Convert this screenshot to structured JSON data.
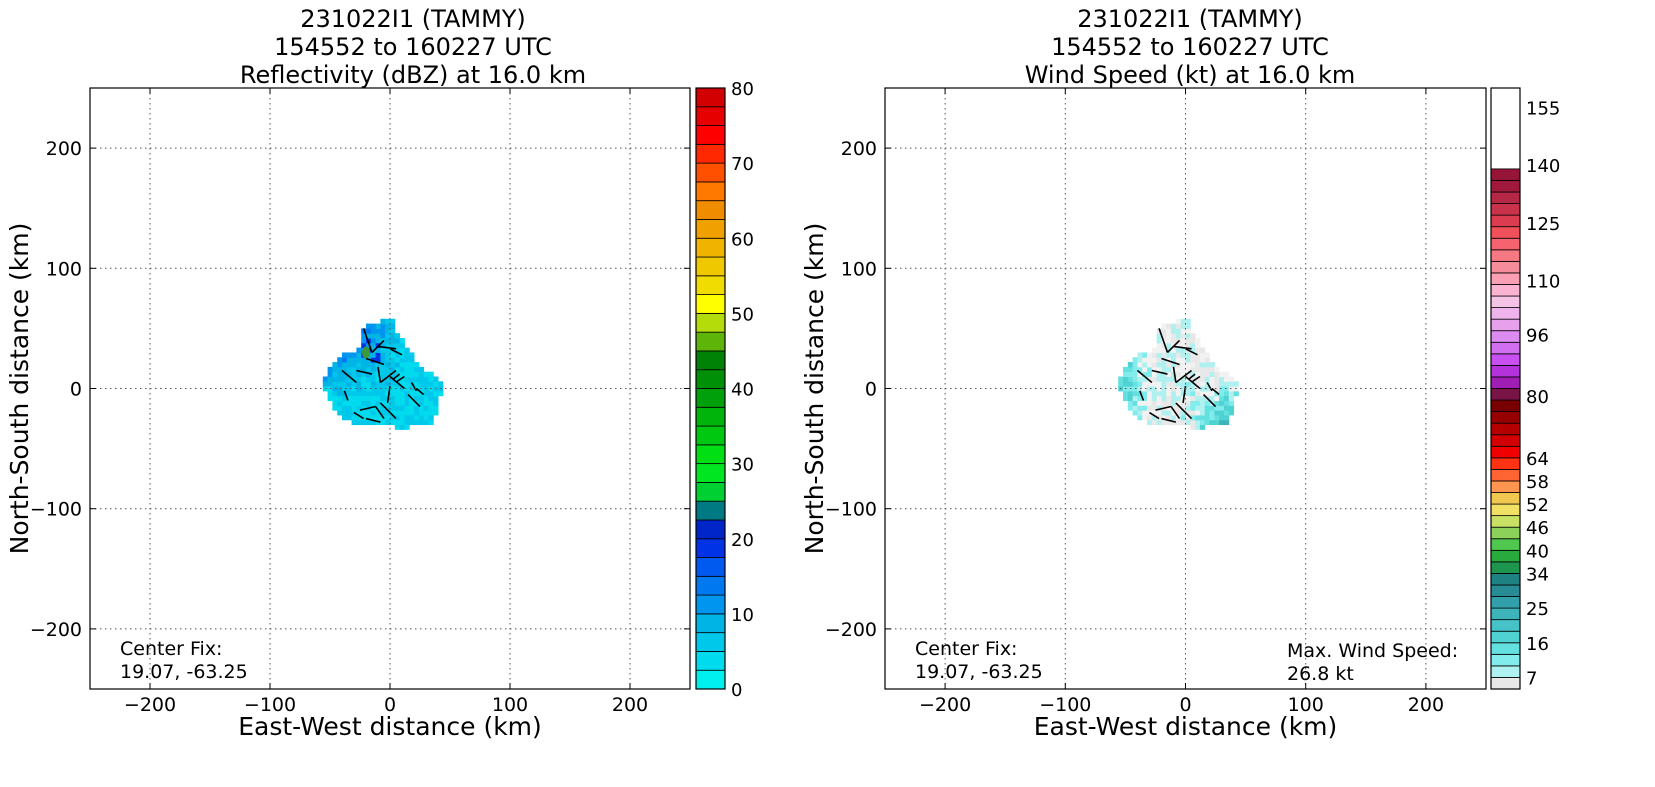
{
  "chart_data": [
    {
      "type": "heatmap",
      "title_lines": [
        "231022I1 (TAMMY)",
        "154552 to 160227 UTC",
        "Reflectivity (dBZ) at 16.0 km"
      ],
      "xlabel": "East-West distance (km)",
      "ylabel": "North-South distance (km)",
      "xlim": [
        -250,
        250
      ],
      "ylim": [
        -250,
        250
      ],
      "xticks": [
        -200,
        -100,
        0,
        100,
        200
      ],
      "yticks": [
        -200,
        -100,
        0,
        100,
        200
      ],
      "grid": true,
      "annotation_left": [
        "Center Fix:",
        "19.07, -63.25"
      ],
      "colorbar": {
        "min": 0,
        "max": 80,
        "step": 2.5,
        "tick_values": [
          0,
          10,
          20,
          30,
          40,
          50,
          60,
          70,
          80
        ],
        "tick_labels": [
          "0",
          "10",
          "20",
          "30",
          "40",
          "50",
          "60",
          "70",
          "80"
        ],
        "colors": [
          "#00f0f0",
          "#00dced",
          "#00c8ea",
          "#00b4e6",
          "#0096ef",
          "#0078f0",
          "#005af0",
          "#0032e6",
          "#0025c8",
          "#007a82",
          "#00d032",
          "#00e620",
          "#00de14",
          "#00c810",
          "#00b40c",
          "#00a00a",
          "#009008",
          "#008206",
          "#5fb40a",
          "#b4dc0a",
          "#ffff00",
          "#f0dc00",
          "#f0c800",
          "#f0b400",
          "#f0a000",
          "#f08c00",
          "#ff7800",
          "#ff5000",
          "#ff2800",
          "#ff0000",
          "#e60000",
          "#d20000",
          "#c00010",
          "#c80028",
          "#e00078",
          "#f000c8",
          "#e632e6",
          "#c850dc",
          "#8c3ca0",
          "#4b2864",
          "#000000"
        ]
      },
      "echo_region": {
        "center_km": [
          -5,
          10
        ],
        "palette": [
          "#00dced",
          "#00c8ea",
          "#00b4e6",
          "#0096ef",
          "#0078f0",
          "#005af0",
          "#0032e6"
        ],
        "embedded_cell_color": "#3a9a3a"
      }
    },
    {
      "type": "heatmap",
      "title_lines": [
        "231022I1 (TAMMY)",
        "154552 to 160227 UTC",
        "Wind Speed (kt) at 16.0 km"
      ],
      "xlabel": "East-West distance (km)",
      "ylabel": "North-South distance (km)",
      "xlim": [
        -250,
        250
      ],
      "ylim": [
        -250,
        250
      ],
      "xticks": [
        -200,
        -100,
        0,
        100,
        200
      ],
      "yticks": [
        -200,
        -100,
        0,
        100,
        200
      ],
      "grid": true,
      "annotation_left": [
        "Center Fix:",
        "19.07, -63.25"
      ],
      "annotation_right": [
        "Max. Wind Speed:",
        "26.8 kt"
      ],
      "colorbar": {
        "min": 4,
        "max": 160,
        "step": 3,
        "tick_values": [
          7,
          16,
          25,
          34,
          40,
          46,
          52,
          58,
          64,
          80,
          96,
          110,
          125,
          140,
          155
        ],
        "tick_labels": [
          "7",
          "16",
          "25",
          "34",
          "40",
          "46",
          "52",
          "58",
          "64",
          "80",
          "96",
          "110",
          "125",
          "140",
          "155"
        ],
        "colors": [
          "#e8e8e8",
          "#aff0f0",
          "#82ecec",
          "#64e0e0",
          "#50d2d2",
          "#46c3c8",
          "#3cb4b9",
          "#32a0aa",
          "#288c96",
          "#1e8282",
          "#1e9650",
          "#28aa3c",
          "#50c850",
          "#8cd25a",
          "#c8e164",
          "#f0e164",
          "#f0c850",
          "#ff9650",
          "#ff6432",
          "#ff3214",
          "#f00000",
          "#d20000",
          "#b40000",
          "#960000",
          "#780000",
          "#781446",
          "#a01eb4",
          "#b432dc",
          "#c850f0",
          "#d26ef0",
          "#dc8cf0",
          "#e6a0ec",
          "#f0b4ec",
          "#f5c3e6",
          "#fab4d2",
          "#fa9fb4",
          "#f58c9b",
          "#f57882",
          "#f5646e",
          "#f0505a",
          "#dc3c50",
          "#c8324b",
          "#b42846",
          "#a0193c",
          "#961438"
        ]
      },
      "wind_region": {
        "center_km": [
          -5,
          10
        ],
        "palette": [
          "#e8e8e8",
          "#f2f2f2",
          "#aff0f0",
          "#82ecec",
          "#64e0e0",
          "#50d2d2",
          "#3cb4b9",
          "#32a0aa",
          "#288c96"
        ]
      }
    }
  ]
}
